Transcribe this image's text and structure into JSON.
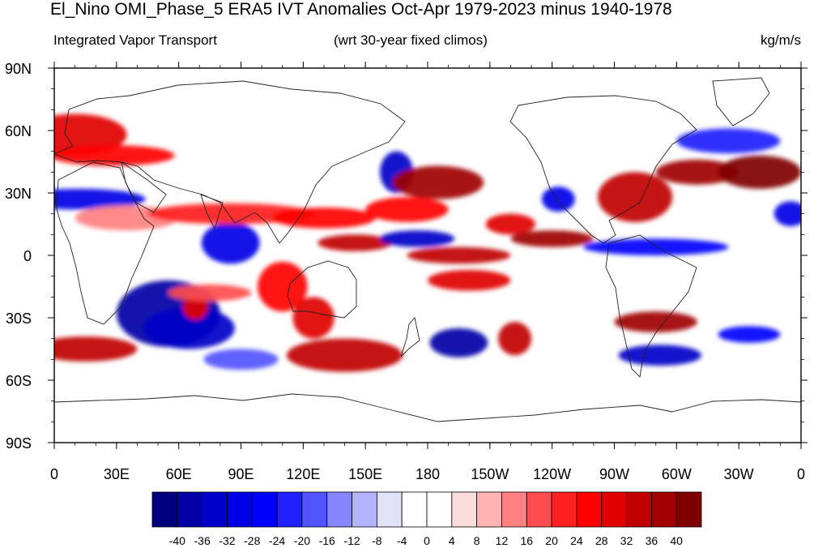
{
  "title": "El_Nino OMI_Phase_5 ERA5 IVT Anomalies Oct-Apr 1979-2023 minus 1940-1978",
  "subtitle_left": "Integrated Vapor Transport",
  "subtitle_center": "(wrt 30-year fixed climos)",
  "subtitle_right": "kg/m/s",
  "lat_labels": [
    "90N",
    "60N",
    "30N",
    "0",
    "30S",
    "60S",
    "90S"
  ],
  "lon_labels": [
    "0",
    "30E",
    "60E",
    "90E",
    "120E",
    "150E",
    "180",
    "150W",
    "120W",
    "90W",
    "60W",
    "30W",
    "0"
  ],
  "colorbar": {
    "levels": [
      "-40",
      "-36",
      "-32",
      "-28",
      "-24",
      "-20",
      "-16",
      "-12",
      "-8",
      "-4",
      "0",
      "4",
      "8",
      "12",
      "16",
      "20",
      "24",
      "28",
      "32",
      "36",
      "40"
    ],
    "colors": [
      "#00007f",
      "#0000a6",
      "#0000c8",
      "#0000e6",
      "#0000ff",
      "#2020ff",
      "#5252ff",
      "#8585ff",
      "#b3b3ff",
      "#e1e1fa",
      "#ffffff",
      "#ffffff",
      "#fadcdc",
      "#ffb3b3",
      "#ff8080",
      "#ff4d4d",
      "#ff2020",
      "#ff0000",
      "#e00000",
      "#c00000",
      "#a00000",
      "#800000"
    ]
  },
  "chart_data": {
    "type": "heatmap",
    "xlim": [
      0,
      360
    ],
    "ylim": [
      -90,
      90
    ],
    "blobs": [
      {
        "lon": 10,
        "lat": 58,
        "rx": 25,
        "ry": 10,
        "v": 28
      },
      {
        "lon": 12,
        "lat": 27,
        "rx": 32,
        "ry": 5,
        "v": -32
      },
      {
        "lon": 28,
        "lat": 48,
        "rx": 30,
        "ry": 5,
        "v": 24
      },
      {
        "lon": 35,
        "lat": 18,
        "rx": 25,
        "ry": 6,
        "v": 12
      },
      {
        "lon": 15,
        "lat": -45,
        "rx": 25,
        "ry": 6,
        "v": 32
      },
      {
        "lon": 55,
        "lat": -28,
        "rx": 25,
        "ry": 16,
        "v": -40
      },
      {
        "lon": 65,
        "lat": -35,
        "rx": 22,
        "ry": 10,
        "v": -36
      },
      {
        "lon": 68,
        "lat": -25,
        "rx": 6,
        "ry": 6,
        "v": 30
      },
      {
        "lon": 85,
        "lat": 6,
        "rx": 14,
        "ry": 10,
        "v": -32
      },
      {
        "lon": 85,
        "lat": 20,
        "rx": 40,
        "ry": 5,
        "v": 20
      },
      {
        "lon": 75,
        "lat": -18,
        "rx": 20,
        "ry": 4,
        "v": 16
      },
      {
        "lon": 90,
        "lat": -50,
        "rx": 18,
        "ry": 5,
        "v": -20
      },
      {
        "lon": 110,
        "lat": -15,
        "rx": 12,
        "ry": 12,
        "v": 24
      },
      {
        "lon": 125,
        "lat": -30,
        "rx": 10,
        "ry": 10,
        "v": 28
      },
      {
        "lon": 130,
        "lat": 18,
        "rx": 25,
        "ry": 5,
        "v": 24
      },
      {
        "lon": 145,
        "lat": 6,
        "rx": 18,
        "ry": 4,
        "v": 32
      },
      {
        "lon": 140,
        "lat": -48,
        "rx": 28,
        "ry": 8,
        "v": 32
      },
      {
        "lon": 165,
        "lat": 40,
        "rx": 8,
        "ry": 10,
        "v": -36
      },
      {
        "lon": 185,
        "lat": 35,
        "rx": 22,
        "ry": 8,
        "v": 36
      },
      {
        "lon": 170,
        "lat": 22,
        "rx": 20,
        "ry": 6,
        "v": 24
      },
      {
        "lon": 175,
        "lat": 8,
        "rx": 18,
        "ry": 4,
        "v": -36
      },
      {
        "lon": 195,
        "lat": 0,
        "rx": 25,
        "ry": 4,
        "v": 32
      },
      {
        "lon": 200,
        "lat": -12,
        "rx": 20,
        "ry": 5,
        "v": 28
      },
      {
        "lon": 195,
        "lat": -42,
        "rx": 14,
        "ry": 7,
        "v": -40
      },
      {
        "lon": 222,
        "lat": -40,
        "rx": 8,
        "ry": 8,
        "v": 32
      },
      {
        "lon": 220,
        "lat": 15,
        "rx": 12,
        "ry": 5,
        "v": 28
      },
      {
        "lon": 240,
        "lat": 8,
        "rx": 20,
        "ry": 4,
        "v": 36
      },
      {
        "lon": 243,
        "lat": 27,
        "rx": 8,
        "ry": 6,
        "v": -32
      },
      {
        "lon": 280,
        "lat": 28,
        "rx": 18,
        "ry": 12,
        "v": 32
      },
      {
        "lon": 310,
        "lat": 40,
        "rx": 20,
        "ry": 6,
        "v": 36
      },
      {
        "lon": 340,
        "lat": 40,
        "rx": 20,
        "ry": 8,
        "v": 40
      },
      {
        "lon": 290,
        "lat": 4,
        "rx": 35,
        "ry": 4,
        "v": -28
      },
      {
        "lon": 290,
        "lat": -32,
        "rx": 20,
        "ry": 5,
        "v": 36
      },
      {
        "lon": 292,
        "lat": -48,
        "rx": 20,
        "ry": 5,
        "v": -36
      },
      {
        "lon": 335,
        "lat": -38,
        "rx": 15,
        "ry": 4,
        "v": -28
      },
      {
        "lon": 355,
        "lat": 20,
        "rx": 8,
        "ry": 6,
        "v": -32
      },
      {
        "lon": 325,
        "lat": 55,
        "rx": 25,
        "ry": 6,
        "v": -24
      }
    ]
  }
}
